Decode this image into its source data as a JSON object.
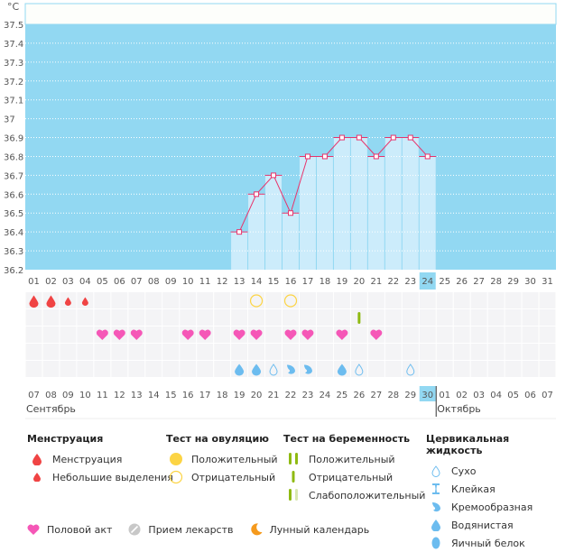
{
  "chart_data": {
    "type": "line",
    "title": "",
    "unit_label": "°C",
    "ylabel": "°C",
    "xlabel": "",
    "ylim": [
      36.2,
      37.5
    ],
    "yticks": [
      "37.5",
      "37.4",
      "37.3",
      "37.2",
      "37.1",
      "37",
      "36.9",
      "36.8",
      "36.7",
      "36.6",
      "36.5",
      "36.4",
      "36.3",
      "36.2"
    ],
    "ytick_values": [
      37.5,
      37.4,
      37.3,
      37.2,
      37.1,
      37.0,
      36.9,
      36.8,
      36.7,
      36.6,
      36.5,
      36.4,
      36.3,
      36.2
    ],
    "cycle_days": [
      "01",
      "02",
      "03",
      "04",
      "05",
      "06",
      "07",
      "08",
      "09",
      "10",
      "11",
      "12",
      "13",
      "14",
      "15",
      "16",
      "17",
      "18",
      "19",
      "20",
      "21",
      "22",
      "23",
      "24",
      "25",
      "26",
      "27",
      "28",
      "29",
      "30",
      "31"
    ],
    "current_cycle_day": "24",
    "temperatures": [
      {
        "day": "13",
        "value": 36.4
      },
      {
        "day": "14",
        "value": 36.6
      },
      {
        "day": "15",
        "value": 36.7
      },
      {
        "day": "16",
        "value": 36.5
      },
      {
        "day": "17",
        "value": 36.8
      },
      {
        "day": "18",
        "value": 36.8
      },
      {
        "day": "19",
        "value": 36.9
      },
      {
        "day": "20",
        "value": 36.9
      },
      {
        "day": "21",
        "value": 36.8
      },
      {
        "day": "22",
        "value": 36.9
      },
      {
        "day": "23",
        "value": 36.9
      },
      {
        "day": "24",
        "value": 36.8
      }
    ],
    "grid": true,
    "colors": {
      "plot_bg": "#92d8f2",
      "bar": "#ccecfb",
      "line": "#e8336b",
      "header_bg": "#fdfefb",
      "event_bg": "#f4f4f6"
    },
    "calendar_dates": [
      {
        "d": "07",
        "weekend": false
      },
      {
        "d": "08",
        "weekend": false
      },
      {
        "d": "09",
        "weekend": false
      },
      {
        "d": "10",
        "weekend": false
      },
      {
        "d": "11",
        "weekend": false
      },
      {
        "d": "12",
        "weekend": true
      },
      {
        "d": "13",
        "weekend": true
      },
      {
        "d": "14",
        "weekend": false
      },
      {
        "d": "15",
        "weekend": false
      },
      {
        "d": "16",
        "weekend": false
      },
      {
        "d": "17",
        "weekend": false
      },
      {
        "d": "18",
        "weekend": false
      },
      {
        "d": "19",
        "weekend": true
      },
      {
        "d": "20",
        "weekend": true
      },
      {
        "d": "21",
        "weekend": false
      },
      {
        "d": "22",
        "weekend": false
      },
      {
        "d": "23",
        "weekend": false
      },
      {
        "d": "24",
        "weekend": false
      },
      {
        "d": "25",
        "weekend": false
      },
      {
        "d": "26",
        "weekend": true
      },
      {
        "d": "27",
        "weekend": true
      },
      {
        "d": "28",
        "weekend": false
      },
      {
        "d": "29",
        "weekend": false
      },
      {
        "d": "30",
        "weekend": false,
        "today": true
      },
      {
        "d": "01",
        "weekend": false
      },
      {
        "d": "02",
        "weekend": false
      },
      {
        "d": "03",
        "weekend": true
      },
      {
        "d": "04",
        "weekend": true
      },
      {
        "d": "05",
        "weekend": false
      },
      {
        "d": "06",
        "weekend": false
      },
      {
        "d": "07",
        "weekend": false
      }
    ],
    "months": [
      {
        "label": "Сентябрь",
        "start_index": 0
      },
      {
        "label": "Октябрь",
        "start_index": 24
      }
    ],
    "events": {
      "menstruation": [
        {
          "day": "01",
          "level": "heavy"
        },
        {
          "day": "02",
          "level": "heavy"
        },
        {
          "day": "03",
          "level": "light"
        },
        {
          "day": "04",
          "level": "light"
        }
      ],
      "ovulation_test": [
        {
          "day": "14",
          "result": "negative"
        },
        {
          "day": "16",
          "result": "negative"
        }
      ],
      "pregnancy_test": [
        {
          "day": "20",
          "result": "negative"
        }
      ],
      "intercourse": [
        "05",
        "06",
        "07",
        "10",
        "11",
        "13",
        "14",
        "16",
        "17",
        "19",
        "21"
      ],
      "cervical_fluid": [
        {
          "day": "13",
          "type": "watery"
        },
        {
          "day": "14",
          "type": "watery"
        },
        {
          "day": "15",
          "type": "dry"
        },
        {
          "day": "16",
          "type": "creamy"
        },
        {
          "day": "17",
          "type": "creamy"
        },
        {
          "day": "19",
          "type": "watery"
        },
        {
          "day": "20",
          "type": "dry"
        },
        {
          "day": "23",
          "type": "dry"
        }
      ]
    }
  },
  "legend": {
    "menstruation": {
      "title": "Менструация",
      "items": [
        {
          "icon": "drop-large-icon",
          "label": "Менструация"
        },
        {
          "icon": "drop-small-icon",
          "label": "Небольшие выделения"
        }
      ]
    },
    "ovulation": {
      "title": "Тест на овуляцию",
      "items": [
        {
          "icon": "circle-filled-icon",
          "label": "Положительный"
        },
        {
          "icon": "circle-outline-icon",
          "label": "Отрицательный"
        }
      ]
    },
    "pregnancy": {
      "title": "Тест на беременность",
      "items": [
        {
          "icon": "two-bars-icon",
          "label": "Положительный"
        },
        {
          "icon": "one-bar-icon",
          "label": "Отрицательный"
        },
        {
          "icon": "faint-bars-icon",
          "label": "Слабоположительный"
        }
      ]
    },
    "cervical": {
      "title": "Цервикальная жидкость",
      "items": [
        {
          "icon": "dry-drop-icon",
          "label": "Сухо"
        },
        {
          "icon": "sticky-icon",
          "label": "Клейкая"
        },
        {
          "icon": "creamy-icon",
          "label": "Кремообразная"
        },
        {
          "icon": "watery-drop-icon",
          "label": "Водянистая"
        },
        {
          "icon": "egg-white-icon",
          "label": "Яичный белок"
        }
      ]
    },
    "bottom": [
      {
        "icon": "heart-icon",
        "label": "Половой акт"
      },
      {
        "icon": "pill-icon",
        "label": "Прием лекарств"
      },
      {
        "icon": "moon-icon",
        "label": "Лунный календарь"
      }
    ]
  }
}
